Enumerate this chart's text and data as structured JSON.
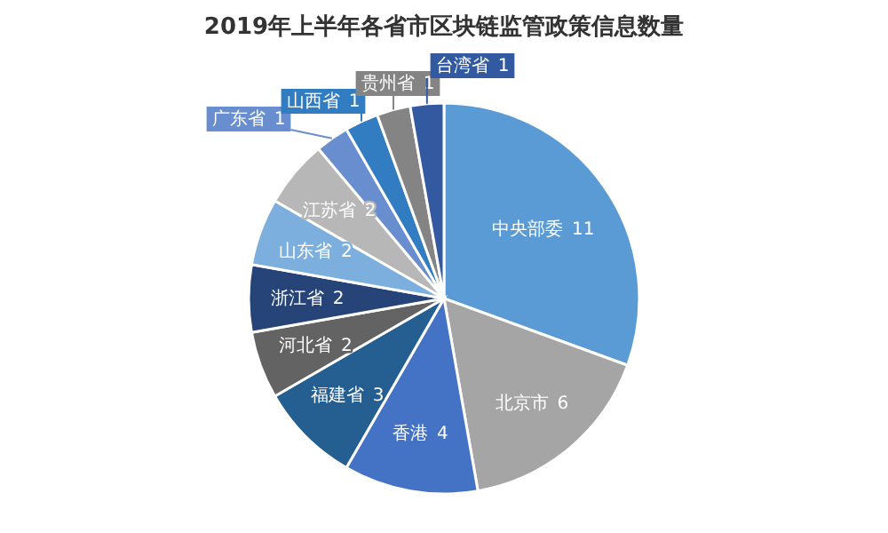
{
  "chart_data": {
    "type": "pie",
    "title": "2019年上半年各省市区块链监管政策信息数量",
    "categories": [
      "中央部委",
      "北京市",
      "香港",
      "福建省",
      "河北省",
      "浙江省",
      "山东省",
      "江苏省",
      "广东省",
      "山西省",
      "贵州省",
      "台湾省"
    ],
    "values": [
      11,
      6,
      4,
      3,
      2,
      2,
      2,
      2,
      1,
      1,
      1,
      1
    ],
    "colors": [
      "#5b9bd5",
      "#a5a5a5",
      "#4472c4",
      "#255e91",
      "#636363",
      "#264478",
      "#7cafdd",
      "#b7b7b7",
      "#698ed0",
      "#327dc2",
      "#848484",
      "#335aa1"
    ],
    "data_labels": true
  }
}
